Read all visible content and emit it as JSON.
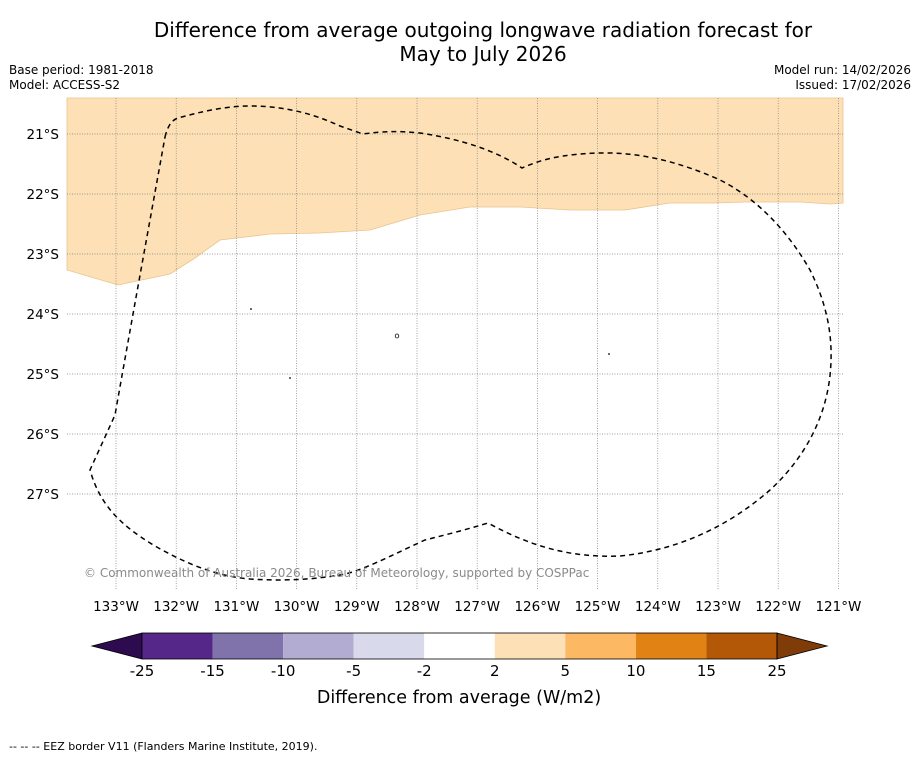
{
  "title_line1": "Difference from average outgoing longwave radiation forecast for",
  "title_line2": "May to July 2026",
  "base_period": "Base period: 1981-2018",
  "model": "Model: ACCESS-S2",
  "model_run": "Model run: 14/02/2026",
  "issued": "Issued: 17/02/2026",
  "copyright": "© Commonwealth of Australia 2026, Bureau of Meteorology, supported by COSPPac",
  "footnote": "--  --  -- EEZ border V11 (Flanders Marine Institute, 2019).",
  "map": {
    "lon_labels": [
      "133°W",
      "132°W",
      "131°W",
      "130°W",
      "129°W",
      "128°W",
      "127°W",
      "126°W",
      "125°W",
      "124°W",
      "123°W",
      "122°W",
      "121°W"
    ],
    "lat_labels": [
      "21°S",
      "22°S",
      "23°S",
      "24°S",
      "25°S",
      "26°S",
      "27°S"
    ],
    "shaded_region_category": "2 to 5",
    "background_category": "-2 to 2"
  },
  "colorbar": {
    "title": "Difference from average (W/m2)",
    "ticks": [
      "-25",
      "-15",
      "-10",
      "-5",
      "-2",
      "2",
      "5",
      "10",
      "15",
      "25"
    ],
    "colors": [
      "#2d0b4e",
      "#542788",
      "#8073ac",
      "#b2abd2",
      "#d8daeb",
      "#ffffff",
      "#fee0b6",
      "#fdb863",
      "#e08214",
      "#b35806",
      "#7f3b08"
    ]
  }
}
